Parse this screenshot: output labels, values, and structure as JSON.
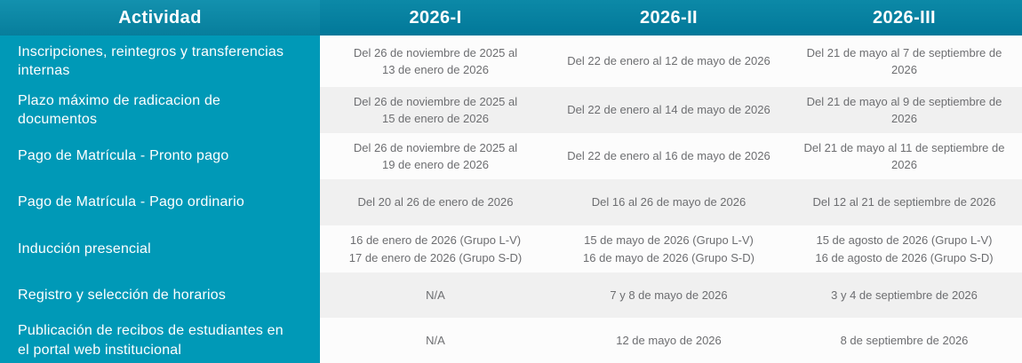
{
  "table": {
    "header": {
      "activity_label": "Actividad",
      "periods": [
        "2026-I",
        "2026-II",
        "2026-III"
      ]
    },
    "rows": [
      {
        "activity": "Inscripciones, reintegros y transferencias internas",
        "values": [
          "Del 26 de noviembre de 2025 al\n13 de enero de 2026",
          "Del 22 de enero al 12 de mayo de 2026",
          "Del 21 de mayo al 7 de septiembre de 2026"
        ]
      },
      {
        "activity": "Plazo máximo de radicacion de documentos",
        "values": [
          "Del 26 de noviembre de 2025 al\n15 de enero de 2026",
          "Del 22 de enero al 14 de mayo de 2026",
          "Del 21 de mayo al 9 de septiembre de 2026"
        ]
      },
      {
        "activity": "Pago de Matrícula - Pronto pago",
        "values": [
          "Del 26 de noviembre de 2025 al\n19 de enero de 2026",
          "Del 22 de enero al 16 de mayo de 2026",
          "Del 21 de mayo al 11 de septiembre de 2026"
        ]
      },
      {
        "activity": "Pago de Matrícula - Pago ordinario",
        "values": [
          "Del 20 al 26 de enero de 2026",
          "Del 16 al 26 de mayo de 2026",
          "Del 12 al 21 de septiembre de 2026"
        ]
      },
      {
        "activity": "Inducción presencial",
        "values": [
          "16 de enero de 2026 (Grupo L-V)\n17 de enero de 2026 (Grupo S-D)",
          "15 de mayo de 2026 (Grupo L-V)\n16 de mayo de 2026 (Grupo S-D)",
          "15 de agosto de 2026 (Grupo L-V)\n16 de agosto de 2026 (Grupo S-D)"
        ]
      },
      {
        "activity": "Registro y selección de horarios",
        "values": [
          "N/A",
          "7 y 8 de mayo de 2026",
          "3 y 4 de septiembre de 2026"
        ]
      },
      {
        "activity": "Publicación de recibos de estudiantes en el portal web institucional",
        "values": [
          "N/A",
          "12 de mayo de 2026",
          "8 de septiembre de 2026"
        ]
      }
    ]
  },
  "colors": {
    "header_left_bg": "#0E8CA9",
    "header_right_bg": "#0584A3",
    "activity_column_bg": "#0099B7",
    "row_bg": "#FCFCFC",
    "row_alt_bg": "#F0F0F0",
    "header_text": "#FFFFFF",
    "activity_text": "#FFFFFF",
    "data_text": "#6D6E71"
  }
}
